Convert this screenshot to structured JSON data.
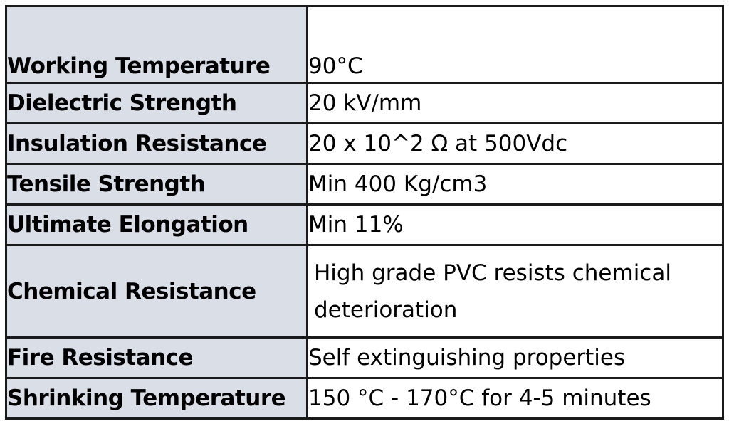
{
  "rows": [
    {
      "label": "Working Temperature",
      "value": "90°C"
    },
    {
      "label": "Dielectric Strength",
      "value": "20 kV/mm"
    },
    {
      "label": "Insulation Resistance",
      "value": "20 x 10^2 Ω at 500Vdc"
    },
    {
      "label": "Tensile Strength",
      "value": "Min 400 Kg/cm3"
    },
    {
      "label": "Ultimate Elongation",
      "value": "Min 11%"
    },
    {
      "label": "Chemical Resistance",
      "value": "High grade PVC resists chemical deterioration"
    },
    {
      "label": "Fire Resistance",
      "value": "Self extinguishing properties"
    },
    {
      "label": "Shrinking Temperature",
      "value": "150 °C - 170°C for 4-5 minutes"
    }
  ]
}
